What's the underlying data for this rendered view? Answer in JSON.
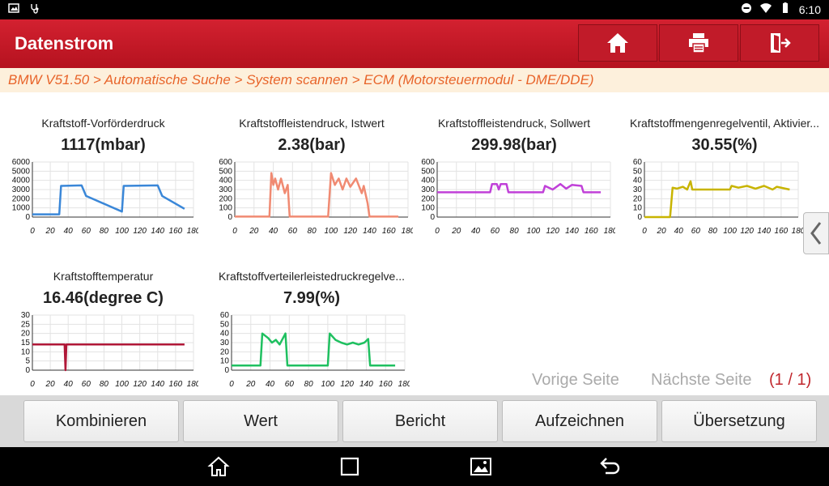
{
  "status": {
    "time": "6:10"
  },
  "header": {
    "title": "Datenstrom"
  },
  "breadcrumb": "BMW V51.50 > Automatische Suche > System scannen > ECM (Motorsteuermodul - DME/DDE)",
  "charts": [
    {
      "title": "Kraftstoff-Vorförderdruck",
      "value": "1117(mbar)",
      "color": "#3a87d8",
      "yticks": [
        "6000",
        "5000",
        "4000",
        "3000",
        "2000",
        "1000",
        "0"
      ],
      "ymax": 6000,
      "xticks": [
        "0",
        "20",
        "40",
        "60",
        "80",
        "100",
        "120",
        "140",
        "160",
        "180"
      ],
      "points": [
        [
          0,
          300
        ],
        [
          30,
          300
        ],
        [
          32,
          3400
        ],
        [
          55,
          3450
        ],
        [
          60,
          2300
        ],
        [
          100,
          600
        ],
        [
          102,
          3400
        ],
        [
          140,
          3450
        ],
        [
          145,
          2300
        ],
        [
          170,
          900
        ]
      ]
    },
    {
      "title": "Kraftstoffleistendruck, Istwert",
      "value": "2.38(bar)",
      "color": "#f08a72",
      "yticks": [
        "600",
        "500",
        "400",
        "300",
        "200",
        "100",
        "0"
      ],
      "ymax": 600,
      "xticks": [
        "0",
        "20",
        "40",
        "60",
        "80",
        "100",
        "120",
        "140",
        "160",
        "180"
      ],
      "points": [
        [
          0,
          5
        ],
        [
          36,
          5
        ],
        [
          38,
          480
        ],
        [
          40,
          350
        ],
        [
          42,
          420
        ],
        [
          45,
          300
        ],
        [
          48,
          420
        ],
        [
          52,
          260
        ],
        [
          55,
          350
        ],
        [
          57,
          5
        ],
        [
          97,
          5
        ],
        [
          100,
          480
        ],
        [
          104,
          350
        ],
        [
          108,
          420
        ],
        [
          112,
          300
        ],
        [
          116,
          420
        ],
        [
          120,
          330
        ],
        [
          126,
          420
        ],
        [
          132,
          260
        ],
        [
          134,
          340
        ],
        [
          138,
          150
        ],
        [
          140,
          5
        ],
        [
          170,
          5
        ]
      ]
    },
    {
      "title": "Kraftstoffleistendruck, Sollwert",
      "value": "299.98(bar)",
      "color": "#c040d8",
      "yticks": [
        "600",
        "500",
        "400",
        "300",
        "200",
        "100",
        "0"
      ],
      "ymax": 600,
      "xticks": [
        "0",
        "20",
        "40",
        "60",
        "80",
        "100",
        "120",
        "140",
        "160",
        "180"
      ],
      "points": [
        [
          0,
          270
        ],
        [
          55,
          270
        ],
        [
          57,
          360
        ],
        [
          62,
          360
        ],
        [
          64,
          300
        ],
        [
          66,
          360
        ],
        [
          72,
          360
        ],
        [
          74,
          270
        ],
        [
          110,
          270
        ],
        [
          112,
          340
        ],
        [
          120,
          300
        ],
        [
          128,
          360
        ],
        [
          134,
          310
        ],
        [
          140,
          350
        ],
        [
          150,
          340
        ],
        [
          152,
          270
        ],
        [
          170,
          270
        ]
      ]
    },
    {
      "title": "Kraftstoffmengenregelventil, Aktivier...",
      "value": "30.55(%)",
      "color": "#c8b400",
      "yticks": [
        "60",
        "50",
        "40",
        "30",
        "20",
        "10",
        "0"
      ],
      "ymax": 60,
      "xticks": [
        "0",
        "20",
        "40",
        "60",
        "80",
        "100",
        "120",
        "140",
        "160",
        "180"
      ],
      "points": [
        [
          0,
          0
        ],
        [
          30,
          0
        ],
        [
          33,
          32
        ],
        [
          38,
          31
        ],
        [
          45,
          33
        ],
        [
          50,
          30
        ],
        [
          54,
          39
        ],
        [
          56,
          30
        ],
        [
          100,
          30
        ],
        [
          102,
          34
        ],
        [
          110,
          32
        ],
        [
          120,
          34
        ],
        [
          130,
          31
        ],
        [
          140,
          34
        ],
        [
          150,
          30
        ],
        [
          155,
          33
        ],
        [
          170,
          30
        ]
      ]
    },
    {
      "title": "Kraftstofftemperatur",
      "value": "16.46(degree C)",
      "color": "#b01838",
      "yticks": [
        "30",
        "25",
        "20",
        "15",
        "10",
        "5",
        "0"
      ],
      "ymax": 30,
      "xticks": [
        "0",
        "20",
        "40",
        "60",
        "80",
        "100",
        "120",
        "140",
        "160",
        "180"
      ],
      "points": [
        [
          0,
          14
        ],
        [
          36,
          14
        ],
        [
          37,
          0
        ],
        [
          38,
          14
        ],
        [
          170,
          14
        ]
      ]
    },
    {
      "title": "Kraftstoffverteilerleistedruckregelve...",
      "value": "7.99(%)",
      "color": "#1fc060",
      "yticks": [
        "60",
        "50",
        "40",
        "30",
        "20",
        "10",
        "0"
      ],
      "ymax": 60,
      "xticks": [
        "0",
        "20",
        "40",
        "60",
        "80",
        "100",
        "120",
        "140",
        "160",
        "180"
      ],
      "points": [
        [
          0,
          5
        ],
        [
          30,
          5
        ],
        [
          32,
          40
        ],
        [
          38,
          35
        ],
        [
          42,
          30
        ],
        [
          46,
          33
        ],
        [
          50,
          28
        ],
        [
          56,
          40
        ],
        [
          58,
          5
        ],
        [
          100,
          5
        ],
        [
          102,
          40
        ],
        [
          108,
          33
        ],
        [
          114,
          30
        ],
        [
          120,
          28
        ],
        [
          126,
          30
        ],
        [
          132,
          28
        ],
        [
          138,
          30
        ],
        [
          142,
          34
        ],
        [
          144,
          5
        ],
        [
          170,
          5
        ]
      ]
    }
  ],
  "pager": {
    "prev": "Vorige Seite",
    "next": "Nächste Seite",
    "count": "(1 / 1)"
  },
  "buttons": {
    "combine": "Kombinieren",
    "value": "Wert",
    "report": "Bericht",
    "record": "Aufzeichnen",
    "translate": "Übersetzung"
  }
}
